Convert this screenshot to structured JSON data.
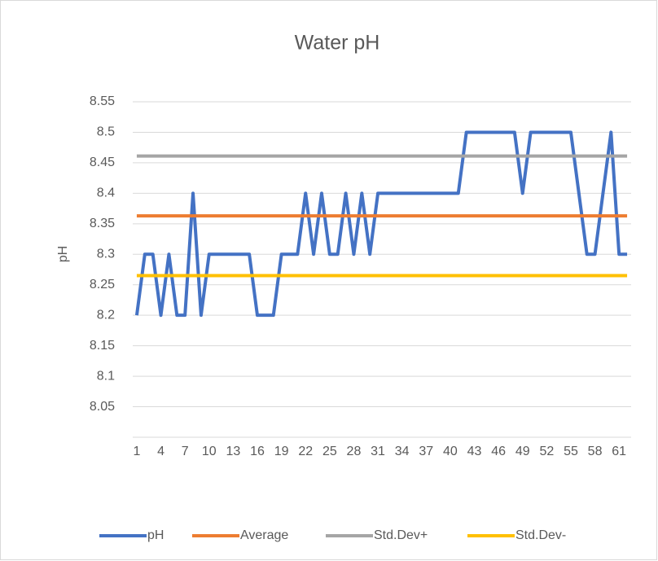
{
  "chart_data": {
    "type": "line",
    "title": "Water pH",
    "y_label": "pH",
    "categories": [
      1,
      null,
      null,
      4,
      null,
      null,
      7,
      null,
      null,
      10,
      null,
      null,
      13,
      null,
      null,
      16,
      null,
      null,
      19,
      null,
      null,
      22,
      null,
      null,
      25,
      null,
      null,
      28,
      null,
      null,
      31,
      null,
      null,
      34,
      null,
      null,
      37,
      null,
      null,
      40,
      null,
      null,
      43,
      null,
      null,
      46,
      null,
      null,
      49,
      null,
      null,
      52,
      null,
      null,
      55,
      null,
      null,
      58,
      null,
      null,
      61,
      null
    ],
    "series": [
      {
        "name": "pH",
        "color": "#4472c4",
        "values": [
          8.2,
          8.3,
          8.3,
          8.2,
          8.3,
          8.2,
          8.2,
          8.4,
          8.2,
          8.3,
          8.3,
          8.3,
          8.3,
          8.3,
          8.3,
          8.2,
          8.2,
          8.2,
          8.3,
          8.3,
          8.3,
          8.4,
          8.3,
          8.4,
          8.3,
          8.3,
          8.4,
          8.3,
          8.4,
          8.3,
          8.4,
          8.4,
          8.4,
          8.4,
          8.4,
          8.4,
          8.4,
          8.4,
          8.4,
          8.4,
          8.4,
          8.5,
          8.5,
          8.5,
          8.5,
          8.5,
          8.5,
          8.5,
          8.4,
          8.5,
          8.5,
          8.5,
          8.5,
          8.5,
          8.5,
          8.4,
          8.3,
          8.3,
          8.4,
          8.5,
          8.3,
          8.3
        ]
      },
      {
        "name": "Average",
        "color": "#ed7d31",
        "values": [
          8.363,
          8.363,
          8.363,
          8.363,
          8.363,
          8.363,
          8.363,
          8.363,
          8.363,
          8.363,
          8.363,
          8.363,
          8.363,
          8.363,
          8.363,
          8.363,
          8.363,
          8.363,
          8.363,
          8.363,
          8.363,
          8.363,
          8.363,
          8.363,
          8.363,
          8.363,
          8.363,
          8.363,
          8.363,
          8.363,
          8.363,
          8.363,
          8.363,
          8.363,
          8.363,
          8.363,
          8.363,
          8.363,
          8.363,
          8.363,
          8.363,
          8.363,
          8.363,
          8.363,
          8.363,
          8.363,
          8.363,
          8.363,
          8.363,
          8.363,
          8.363,
          8.363,
          8.363,
          8.363,
          8.363,
          8.363,
          8.363,
          8.363,
          8.363,
          8.363,
          8.363,
          8.363
        ]
      },
      {
        "name": "Std.Dev+",
        "color": "#a5a5a5",
        "values": [
          8.461,
          8.461,
          8.461,
          8.461,
          8.461,
          8.461,
          8.461,
          8.461,
          8.461,
          8.461,
          8.461,
          8.461,
          8.461,
          8.461,
          8.461,
          8.461,
          8.461,
          8.461,
          8.461,
          8.461,
          8.461,
          8.461,
          8.461,
          8.461,
          8.461,
          8.461,
          8.461,
          8.461,
          8.461,
          8.461,
          8.461,
          8.461,
          8.461,
          8.461,
          8.461,
          8.461,
          8.461,
          8.461,
          8.461,
          8.461,
          8.461,
          8.461,
          8.461,
          8.461,
          8.461,
          8.461,
          8.461,
          8.461,
          8.461,
          8.461,
          8.461,
          8.461,
          8.461,
          8.461,
          8.461,
          8.461,
          8.461,
          8.461,
          8.461,
          8.461,
          8.461,
          8.461
        ]
      },
      {
        "name": "Std.Dev-",
        "color": "#ffc000",
        "values": [
          8.265,
          8.265,
          8.265,
          8.265,
          8.265,
          8.265,
          8.265,
          8.265,
          8.265,
          8.265,
          8.265,
          8.265,
          8.265,
          8.265,
          8.265,
          8.265,
          8.265,
          8.265,
          8.265,
          8.265,
          8.265,
          8.265,
          8.265,
          8.265,
          8.265,
          8.265,
          8.265,
          8.265,
          8.265,
          8.265,
          8.265,
          8.265,
          8.265,
          8.265,
          8.265,
          8.265,
          8.265,
          8.265,
          8.265,
          8.265,
          8.265,
          8.265,
          8.265,
          8.265,
          8.265,
          8.265,
          8.265,
          8.265,
          8.265,
          8.265,
          8.265,
          8.265,
          8.265,
          8.265,
          8.265,
          8.265,
          8.265,
          8.265,
          8.265,
          8.265,
          8.265,
          8.265
        ]
      }
    ],
    "ylim": [
      8.0,
      8.55
    ],
    "yticks": [
      8.05,
      8.1,
      8.15,
      8.2,
      8.25,
      8.3,
      8.35,
      8.4,
      8.45,
      8.5,
      8.55
    ],
    "grid": true,
    "legend": "bottom"
  }
}
